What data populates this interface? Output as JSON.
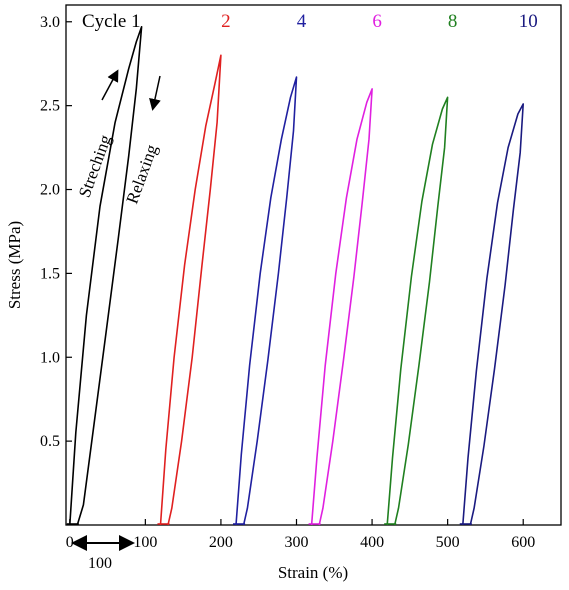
{
  "chart_data": {
    "type": "line",
    "title": "",
    "xlabel": "Strain (%)",
    "ylabel": "Stress (MPa)",
    "xlim": [
      -5,
      650
    ],
    "ylim": [
      0,
      3.1
    ],
    "xticks": [
      0,
      100,
      200,
      300,
      400,
      500,
      600
    ],
    "yticks": [
      0.5,
      1.0,
      1.5,
      2.0,
      2.5,
      3.0
    ],
    "xtick_labels": [
      "0",
      "100",
      "200",
      "300",
      "400",
      "500",
      "600"
    ],
    "ytick_labels": [
      "0.5",
      "1.0",
      "1.5",
      "2.0",
      "2.5",
      "3.0"
    ],
    "grid": false,
    "legend_position": "top",
    "series": [
      {
        "name": "Cycle 1",
        "color": "#000000",
        "offset": 0,
        "label_x": 20,
        "stretch": [
          [
            0,
            0
          ],
          [
            8,
            0.55
          ],
          [
            22,
            1.25
          ],
          [
            40,
            1.9
          ],
          [
            60,
            2.4
          ],
          [
            78,
            2.72
          ],
          [
            88,
            2.88
          ],
          [
            95,
            2.97
          ]
        ],
        "relax": [
          [
            95,
            2.97
          ],
          [
            88,
            2.6
          ],
          [
            78,
            2.2
          ],
          [
            64,
            1.7
          ],
          [
            48,
            1.15
          ],
          [
            32,
            0.6
          ],
          [
            18,
            0.12
          ],
          [
            10,
            0
          ]
        ]
      },
      {
        "name": "2",
        "color": "#e02020",
        "offset": 100,
        "label_x": 200,
        "stretch": [
          [
            120,
            0
          ],
          [
            127,
            0.45
          ],
          [
            138,
            1.0
          ],
          [
            152,
            1.55
          ],
          [
            166,
            2.0
          ],
          [
            180,
            2.38
          ],
          [
            192,
            2.63
          ],
          [
            200,
            2.8
          ]
        ],
        "relax": [
          [
            200,
            2.8
          ],
          [
            195,
            2.4
          ],
          [
            186,
            2.0
          ],
          [
            175,
            1.55
          ],
          [
            162,
            1.0
          ],
          [
            148,
            0.5
          ],
          [
            135,
            0.1
          ],
          [
            130,
            0
          ]
        ]
      },
      {
        "name": "4",
        "color": "#2020a0",
        "offset": 200,
        "label_x": 300,
        "stretch": [
          [
            220,
            0
          ],
          [
            227,
            0.42
          ],
          [
            238,
            0.95
          ],
          [
            252,
            1.5
          ],
          [
            266,
            1.95
          ],
          [
            280,
            2.3
          ],
          [
            292,
            2.55
          ],
          [
            300,
            2.67
          ]
        ],
        "relax": [
          [
            300,
            2.67
          ],
          [
            296,
            2.35
          ],
          [
            287,
            1.95
          ],
          [
            276,
            1.5
          ],
          [
            262,
            0.98
          ],
          [
            248,
            0.5
          ],
          [
            235,
            0.1
          ],
          [
            230,
            0
          ]
        ]
      },
      {
        "name": "6",
        "color": "#e020e0",
        "offset": 300,
        "label_x": 400,
        "stretch": [
          [
            320,
            0
          ],
          [
            327,
            0.4
          ],
          [
            338,
            0.95
          ],
          [
            352,
            1.5
          ],
          [
            366,
            1.95
          ],
          [
            380,
            2.3
          ],
          [
            393,
            2.52
          ],
          [
            400,
            2.6
          ]
        ],
        "relax": [
          [
            400,
            2.6
          ],
          [
            396,
            2.3
          ],
          [
            387,
            1.92
          ],
          [
            376,
            1.48
          ],
          [
            362,
            0.98
          ],
          [
            348,
            0.5
          ],
          [
            335,
            0.1
          ],
          [
            330,
            0
          ]
        ]
      },
      {
        "name": "8",
        "color": "#208020",
        "offset": 400,
        "label_x": 500,
        "stretch": [
          [
            420,
            0
          ],
          [
            427,
            0.4
          ],
          [
            438,
            0.93
          ],
          [
            452,
            1.48
          ],
          [
            466,
            1.93
          ],
          [
            480,
            2.27
          ],
          [
            493,
            2.48
          ],
          [
            500,
            2.55
          ]
        ],
        "relax": [
          [
            500,
            2.55
          ],
          [
            496,
            2.25
          ],
          [
            487,
            1.9
          ],
          [
            476,
            1.45
          ],
          [
            462,
            0.95
          ],
          [
            448,
            0.48
          ],
          [
            435,
            0.1
          ],
          [
            430,
            0
          ]
        ]
      },
      {
        "name": "10",
        "color": "#1a1a80",
        "offset": 500,
        "label_x": 600,
        "stretch": [
          [
            520,
            0
          ],
          [
            527,
            0.4
          ],
          [
            538,
            0.92
          ],
          [
            552,
            1.47
          ],
          [
            566,
            1.92
          ],
          [
            580,
            2.25
          ],
          [
            593,
            2.45
          ],
          [
            600,
            2.51
          ]
        ],
        "relax": [
          [
            600,
            2.51
          ],
          [
            596,
            2.22
          ],
          [
            587,
            1.88
          ],
          [
            576,
            1.43
          ],
          [
            562,
            0.93
          ],
          [
            548,
            0.47
          ],
          [
            535,
            0.1
          ],
          [
            530,
            0
          ]
        ]
      }
    ],
    "annotations": {
      "stretching": "Streching",
      "relaxing": "Relaxing",
      "span": "100"
    }
  }
}
